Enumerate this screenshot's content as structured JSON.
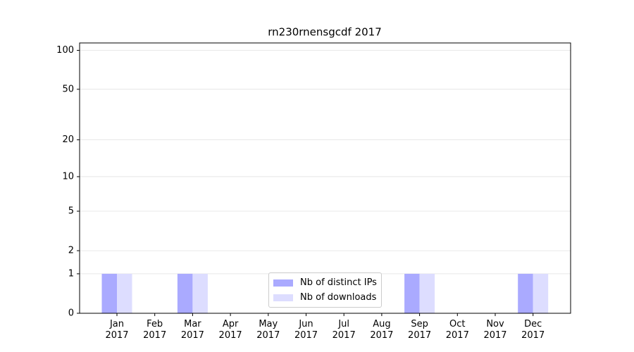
{
  "chart_data": {
    "type": "bar",
    "title": "rn230rnensgcdf 2017",
    "categories": [
      "Jan\n2017",
      "Feb\n2017",
      "Mar\n2017",
      "Apr\n2017",
      "May\n2017",
      "Jun\n2017",
      "Jul\n2017",
      "Aug\n2017",
      "Sep\n2017",
      "Oct\n2017",
      "Nov\n2017",
      "Dec\n2017"
    ],
    "series": [
      {
        "name": "Nb of distinct IPs",
        "color": "#aaaaff",
        "values": [
          1,
          0,
          1,
          0,
          0,
          0,
          0,
          0,
          1,
          0,
          0,
          1
        ]
      },
      {
        "name": "Nb of downloads",
        "color": "#ddddff",
        "values": [
          1,
          0,
          1,
          0,
          0,
          0,
          0,
          0,
          1,
          0,
          0,
          1
        ]
      }
    ],
    "yscale": "log1p",
    "ylim": [
      0,
      114
    ],
    "yticks": [
      0,
      1,
      2,
      5,
      10,
      20,
      50,
      100
    ],
    "grid": true,
    "legend": "lower center"
  }
}
